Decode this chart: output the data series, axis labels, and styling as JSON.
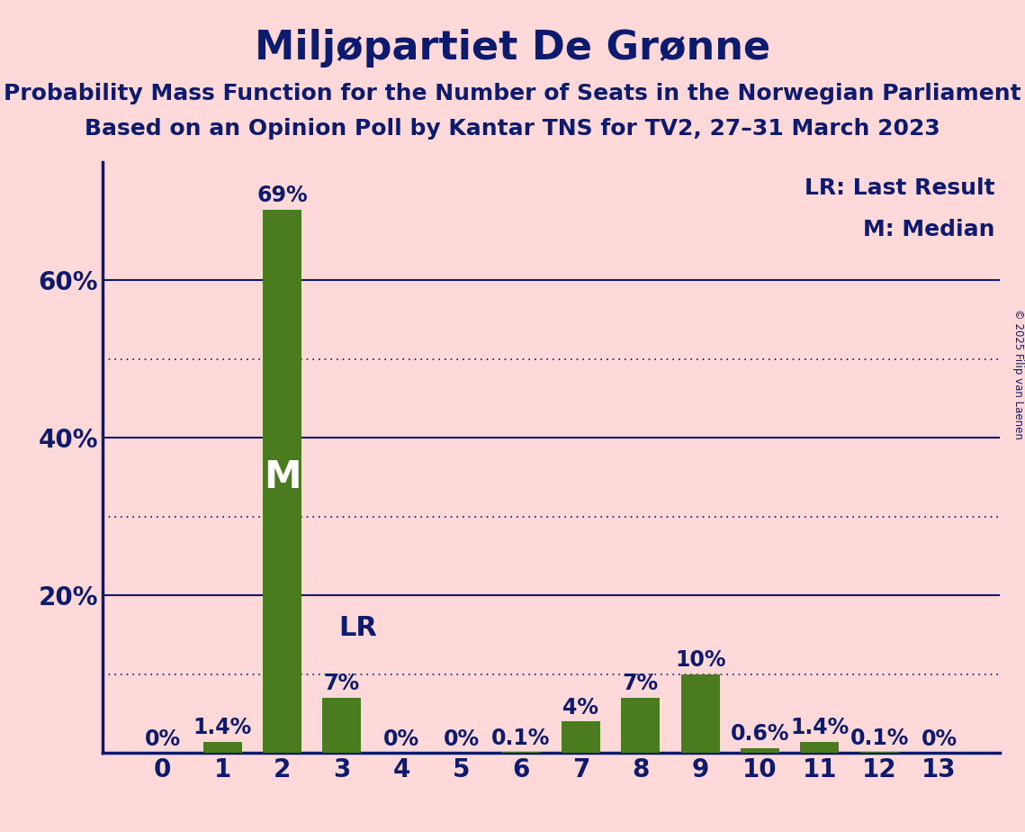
{
  "title": "Miljøpartiet De Grønne",
  "subtitle1": "Probability Mass Function for the Number of Seats in the Norwegian Parliament",
  "subtitle2": "Based on an Opinion Poll by Kantar TNS for TV2, 27–31 March 2023",
  "copyright": "© 2025 Filip van Laenen",
  "categories": [
    0,
    1,
    2,
    3,
    4,
    5,
    6,
    7,
    8,
    9,
    10,
    11,
    12,
    13
  ],
  "values": [
    0.0,
    1.4,
    69.0,
    7.0,
    0.0,
    0.0,
    0.1,
    4.0,
    7.0,
    10.0,
    0.6,
    1.4,
    0.1,
    0.0
  ],
  "labels": [
    "0%",
    "1.4%",
    "69%",
    "7%",
    "0%",
    "0%",
    "0.1%",
    "4%",
    "7%",
    "10%",
    "0.6%",
    "1.4%",
    "0.1%",
    "0%"
  ],
  "bar_color": "#4a7c1f",
  "background_color": "#ffd9d9",
  "title_color": "#0d1b6e",
  "axis_color": "#0d1b6e",
  "label_color": "#0d1b6e",
  "median_bar": 2,
  "lr_bar": 3,
  "median_label": "M",
  "lr_label": "LR",
  "legend_lr": "LR: Last Result",
  "legend_m": "M: Median",
  "ylim": [
    0,
    75
  ],
  "yticks": [
    20,
    40,
    60
  ],
  "ytick_labels": [
    "20%",
    "40%",
    "60%"
  ],
  "dotted_yticks": [
    10,
    30,
    50
  ],
  "title_fontsize": 32,
  "subtitle_fontsize": 18,
  "tick_fontsize": 20,
  "legend_fontsize": 18,
  "bar_label_fontsize": 17,
  "median_label_fontsize": 30,
  "lr_label_fontsize": 22
}
